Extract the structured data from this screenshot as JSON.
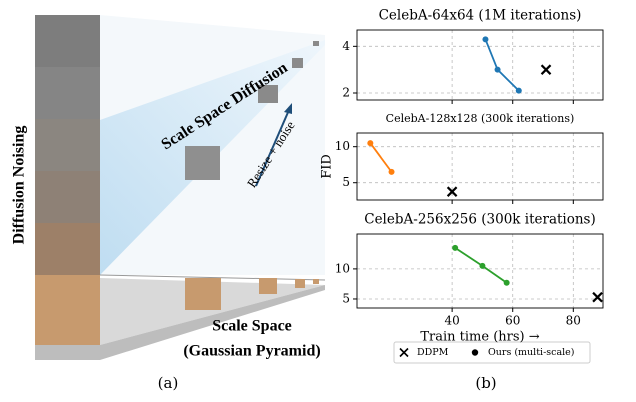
{
  "panel_a": {
    "noising_label": "Diffusion Noising",
    "diffusion_label": "Scale Space Diffusion",
    "arrow_label": "Resize + noise",
    "space_label": [
      "Scale Space",
      "(Gaussian Pyramid)"
    ],
    "caption": "(a)"
  },
  "panel_b": {
    "caption": "(b)"
  },
  "chart_data": [
    {
      "type": "line",
      "title": "CelebA-64x64 (1M iterations)",
      "xlim": [
        8.6,
        89.8
      ],
      "xticks": [
        40,
        60,
        80
      ],
      "ylim": [
        1.7,
        4.7
      ],
      "yticks": [
        2,
        4
      ],
      "grid": true,
      "series": [
        {
          "name": "Ours (multi-scale)",
          "color": "#1f77b4",
          "marker": "dot",
          "x": [
            51,
            55,
            62
          ],
          "values": [
            4.3,
            3.0,
            2.1
          ]
        },
        {
          "name": "DDPM",
          "color": "#000000",
          "marker": "x",
          "x": [
            71
          ],
          "values": [
            3.0
          ]
        }
      ]
    },
    {
      "type": "line",
      "title": "CelebA-128x128 (300k iterations)",
      "ylabel": "FID",
      "xlim": [
        8.6,
        89.8
      ],
      "xticks": [
        40,
        60,
        80
      ],
      "ylim": [
        2.6,
        11.9
      ],
      "yticks": [
        5,
        10
      ],
      "grid": true,
      "series": [
        {
          "name": "Ours (multi-scale)",
          "color": "#ff7f0e",
          "marker": "dot",
          "x": [
            13,
            20
          ],
          "values": [
            10.5,
            6.5
          ]
        },
        {
          "name": "DDPM",
          "color": "#000000",
          "marker": "x",
          "x": [
            40
          ],
          "values": [
            3.75
          ]
        }
      ]
    },
    {
      "type": "line",
      "title": "CelebA-256x256 (300k iterations)",
      "xlabel": "Train time (hrs) →",
      "xlim": [
        8.6,
        89.8
      ],
      "xticks": [
        40,
        60,
        80
      ],
      "ylim": [
        3.5,
        15.8
      ],
      "yticks": [
        5,
        10
      ],
      "grid": true,
      "series": [
        {
          "name": "Ours (multi-scale)",
          "color": "#2ca02c",
          "marker": "dot",
          "x": [
            41,
            50,
            58
          ],
          "values": [
            13.5,
            10.5,
            7.7
          ]
        },
        {
          "name": "DDPM",
          "color": "#000000",
          "marker": "x",
          "x": [
            88
          ],
          "values": [
            5.3
          ]
        }
      ]
    }
  ]
}
